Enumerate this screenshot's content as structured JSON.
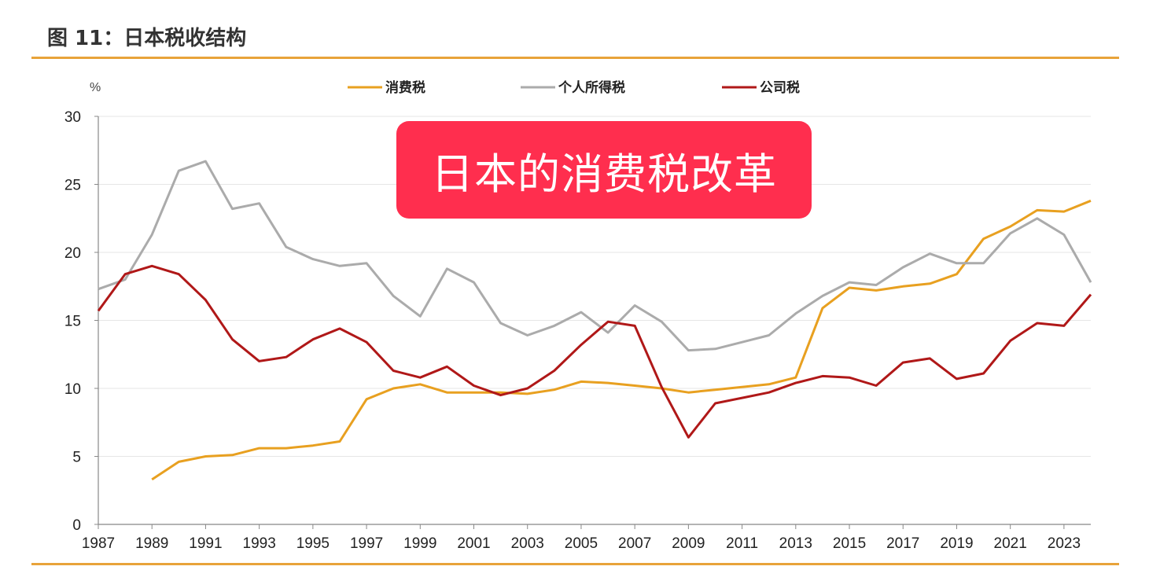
{
  "figure": {
    "title": "图 11：日本税收结构",
    "overlay_text": "日本的消费税改革"
  },
  "colors": {
    "rule": "#E8A33A",
    "consumption": "#E8A020",
    "income": "#ABABAB",
    "corporate": "#B01818",
    "overlay_bg": "#FF2E4E",
    "grid": "#E6E6E6"
  },
  "chart_data": {
    "type": "line",
    "ylabel": "%",
    "ylim": [
      0,
      30
    ],
    "yticks": [
      0,
      5,
      10,
      15,
      20,
      25,
      30
    ],
    "xlim": [
      1987,
      2024
    ],
    "xticks": [
      1987,
      1989,
      1991,
      1993,
      1995,
      1997,
      1999,
      2001,
      2003,
      2005,
      2007,
      2009,
      2011,
      2013,
      2015,
      2017,
      2019,
      2021,
      2023
    ],
    "grid": true,
    "legend_position": "top",
    "series": [
      {
        "name": "消费税",
        "color": "#E8A020",
        "x": [
          1989,
          1990,
          1991,
          1992,
          1993,
          1994,
          1995,
          1996,
          1997,
          1998,
          1999,
          2000,
          2001,
          2002,
          2003,
          2004,
          2005,
          2006,
          2007,
          2008,
          2009,
          2010,
          2011,
          2012,
          2013,
          2014,
          2015,
          2016,
          2017,
          2018,
          2019,
          2020,
          2021,
          2022,
          2023,
          2024
        ],
        "values": [
          3.3,
          4.6,
          5.0,
          5.1,
          5.6,
          5.6,
          5.8,
          6.1,
          9.2,
          10.0,
          10.3,
          9.7,
          9.7,
          9.7,
          9.6,
          9.9,
          10.5,
          10.4,
          10.2,
          10.0,
          9.7,
          9.9,
          10.1,
          10.3,
          10.8,
          15.9,
          17.4,
          17.2,
          17.5,
          17.7,
          18.4,
          21.0,
          21.9,
          23.1,
          23.0,
          23.8
        ]
      },
      {
        "name": "个人所得税",
        "color": "#ABABAB",
        "x": [
          1987,
          1988,
          1989,
          1990,
          1991,
          1992,
          1993,
          1994,
          1995,
          1996,
          1997,
          1998,
          1999,
          2000,
          2001,
          2002,
          2003,
          2004,
          2005,
          2006,
          2007,
          2008,
          2009,
          2010,
          2011,
          2012,
          2013,
          2014,
          2015,
          2016,
          2017,
          2018,
          2019,
          2020,
          2021,
          2022,
          2023,
          2024
        ],
        "values": [
          17.3,
          18.0,
          21.3,
          26.0,
          26.7,
          23.2,
          23.6,
          20.4,
          19.5,
          19.0,
          19.2,
          16.8,
          15.3,
          18.8,
          17.8,
          14.8,
          13.9,
          14.6,
          15.6,
          14.1,
          16.1,
          14.9,
          12.8,
          12.9,
          13.4,
          13.9,
          15.5,
          16.8,
          17.8,
          17.6,
          18.9,
          19.9,
          19.2,
          19.2,
          21.4,
          22.5,
          21.3,
          17.8
        ]
      },
      {
        "name": "公司税",
        "color": "#B01818",
        "x": [
          1987,
          1988,
          1989,
          1990,
          1991,
          1992,
          1993,
          1994,
          1995,
          1996,
          1997,
          1998,
          1999,
          2000,
          2001,
          2002,
          2003,
          2004,
          2005,
          2006,
          2007,
          2008,
          2009,
          2010,
          2011,
          2012,
          2013,
          2014,
          2015,
          2016,
          2017,
          2018,
          2019,
          2020,
          2021,
          2022,
          2023,
          2024
        ],
        "values": [
          15.7,
          18.4,
          19.0,
          18.4,
          16.5,
          13.6,
          12.0,
          12.3,
          13.6,
          14.4,
          13.4,
          11.3,
          10.8,
          11.6,
          10.2,
          9.5,
          10.0,
          11.3,
          13.2,
          14.9,
          14.6,
          10.1,
          6.4,
          8.9,
          9.3,
          9.7,
          10.4,
          10.9,
          10.8,
          10.2,
          11.9,
          12.2,
          10.7,
          11.1,
          13.5,
          14.8,
          14.6,
          16.9
        ]
      }
    ]
  }
}
